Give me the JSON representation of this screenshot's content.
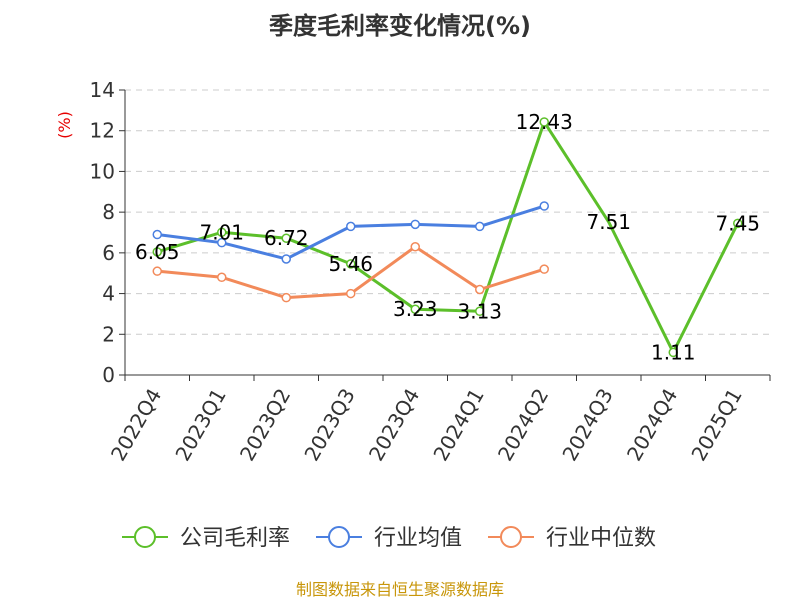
{
  "chart_data": {
    "type": "line",
    "title": "季度毛利率变化情况(%)",
    "ylabel": "(%)",
    "xlabel": "",
    "ylim": [
      0,
      14
    ],
    "yticks": [
      "0",
      "2",
      "4",
      "6",
      "8",
      "10",
      "12",
      "14"
    ],
    "categories": [
      "2022Q4",
      "2023Q1",
      "2023Q2",
      "2023Q3",
      "2023Q4",
      "2024Q1",
      "2024Q2",
      "2024Q3",
      "2024Q4",
      "2025Q1"
    ],
    "grid": true,
    "legend_position": "bottom",
    "series": [
      {
        "name": "公司毛利率",
        "color": "#5cbf2a",
        "values": [
          6.05,
          7.01,
          6.72,
          5.46,
          3.23,
          3.13,
          12.43,
          7.51,
          1.11,
          7.45
        ],
        "labels": [
          "6.05",
          "7.01",
          "6.72",
          "5.46",
          "3.23",
          "3.13",
          "12.43",
          "7.51",
          "1.11",
          "7.45"
        ],
        "markers": [
          true,
          true,
          true,
          true,
          true,
          true,
          true,
          false,
          true,
          true
        ]
      },
      {
        "name": "行业均值",
        "color": "#4a7fe0",
        "values": [
          6.9,
          6.5,
          5.7,
          7.3,
          7.4,
          7.3,
          8.3,
          null,
          null,
          null
        ],
        "labels": null,
        "markers": [
          true,
          true,
          true,
          true,
          true,
          true,
          true,
          false,
          false,
          false
        ]
      },
      {
        "name": "行业中位数",
        "color": "#f28a5a",
        "values": [
          5.1,
          4.8,
          3.8,
          4.0,
          6.3,
          4.2,
          5.2,
          null,
          null,
          null
        ],
        "labels": null,
        "markers": [
          true,
          true,
          true,
          true,
          true,
          true,
          true,
          false,
          false,
          false
        ]
      }
    ]
  },
  "footer": {
    "source": "制图数据来自恒生聚源数据库"
  }
}
